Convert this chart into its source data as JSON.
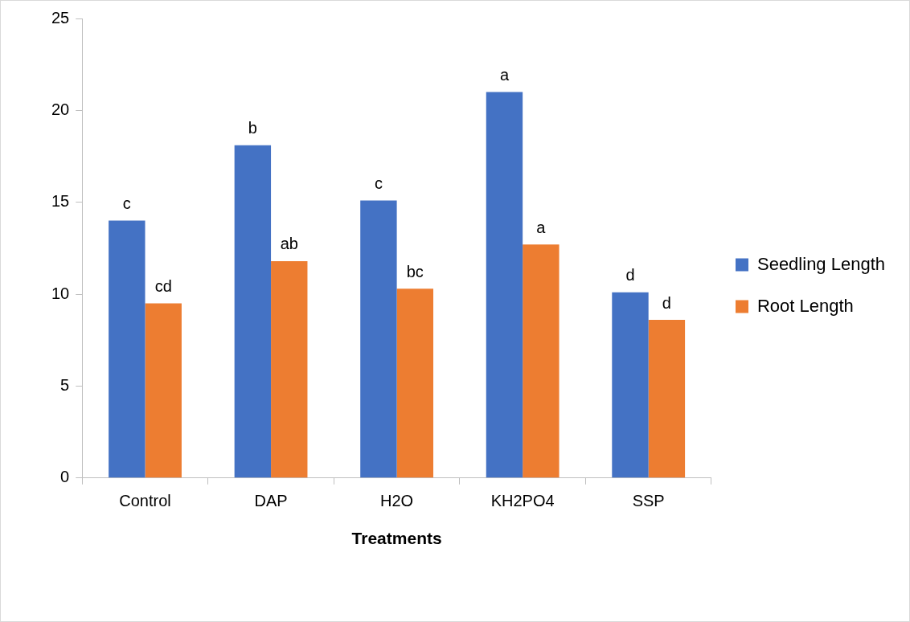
{
  "chart_data": {
    "type": "bar",
    "xlabel": "Treatments",
    "categories": [
      "Control",
      "DAP",
      "H2O",
      "KH2PO4",
      "SSP"
    ],
    "series": [
      {
        "name": "Seedling Length",
        "color": "#4472c4",
        "values": [
          14.0,
          18.1,
          15.1,
          21.0,
          10.1
        ],
        "value_labels": [
          "c",
          "b",
          "c",
          "a",
          "d"
        ]
      },
      {
        "name": "Root Length",
        "color": "#ed7d31",
        "values": [
          9.5,
          11.8,
          10.3,
          12.7,
          8.6
        ],
        "value_labels": [
          "cd",
          "ab",
          "bc",
          "a",
          "d"
        ]
      }
    ],
    "ylim": [
      0,
      25
    ],
    "yticks": [
      0,
      5,
      10,
      15,
      20,
      25
    ],
    "grid": false,
    "legend": "right"
  }
}
